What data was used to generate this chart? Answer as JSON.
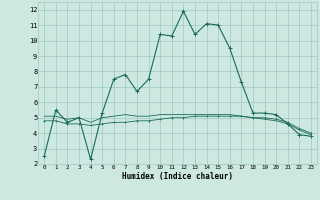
{
  "xlabel": "Humidex (Indice chaleur)",
  "background_color": "#cde8e0",
  "grid_color": "#9fc8be",
  "line_color": "#1a6b5a",
  "xlim": [
    -0.5,
    23.5
  ],
  "ylim": [
    2,
    12.5
  ],
  "xticks": [
    0,
    1,
    2,
    3,
    4,
    5,
    6,
    7,
    8,
    9,
    10,
    11,
    12,
    13,
    14,
    15,
    16,
    17,
    18,
    19,
    20,
    21,
    22,
    23
  ],
  "yticks": [
    2,
    3,
    4,
    5,
    6,
    7,
    8,
    9,
    10,
    11,
    12
  ],
  "series1_x": [
    0,
    1,
    2,
    3,
    4,
    5,
    6,
    7,
    8,
    9,
    10,
    11,
    12,
    13,
    14,
    15,
    16,
    17,
    18,
    19,
    20,
    21,
    22,
    23
  ],
  "series1_y": [
    2.5,
    5.5,
    4.7,
    5.0,
    2.3,
    5.3,
    7.5,
    7.8,
    6.7,
    7.5,
    10.4,
    10.3,
    11.9,
    10.4,
    11.1,
    11.0,
    9.5,
    7.3,
    5.3,
    5.3,
    5.2,
    4.6,
    3.9,
    3.8
  ],
  "series2_x": [
    0,
    1,
    2,
    3,
    4,
    5,
    6,
    7,
    8,
    9,
    10,
    11,
    12,
    13,
    14,
    15,
    16,
    17,
    18,
    19,
    20,
    21,
    22,
    23
  ],
  "series2_y": [
    4.8,
    4.8,
    4.6,
    4.6,
    4.5,
    4.6,
    4.7,
    4.7,
    4.8,
    4.8,
    4.9,
    5.0,
    5.0,
    5.1,
    5.1,
    5.1,
    5.1,
    5.1,
    5.0,
    5.0,
    4.9,
    4.7,
    4.3,
    4.0
  ],
  "series3_x": [
    0,
    1,
    2,
    3,
    4,
    5,
    6,
    7,
    8,
    9,
    10,
    11,
    12,
    13,
    14,
    15,
    16,
    17,
    18,
    19,
    20,
    21,
    22,
    23
  ],
  "series3_y": [
    5.1,
    5.1,
    4.9,
    5.0,
    4.7,
    5.0,
    5.1,
    5.2,
    5.1,
    5.1,
    5.2,
    5.2,
    5.2,
    5.2,
    5.2,
    5.2,
    5.2,
    5.1,
    5.0,
    4.9,
    4.8,
    4.6,
    4.2,
    3.9
  ],
  "xtick_fontsize": 4.2,
  "ytick_fontsize": 5.0,
  "xlabel_fontsize": 5.5
}
